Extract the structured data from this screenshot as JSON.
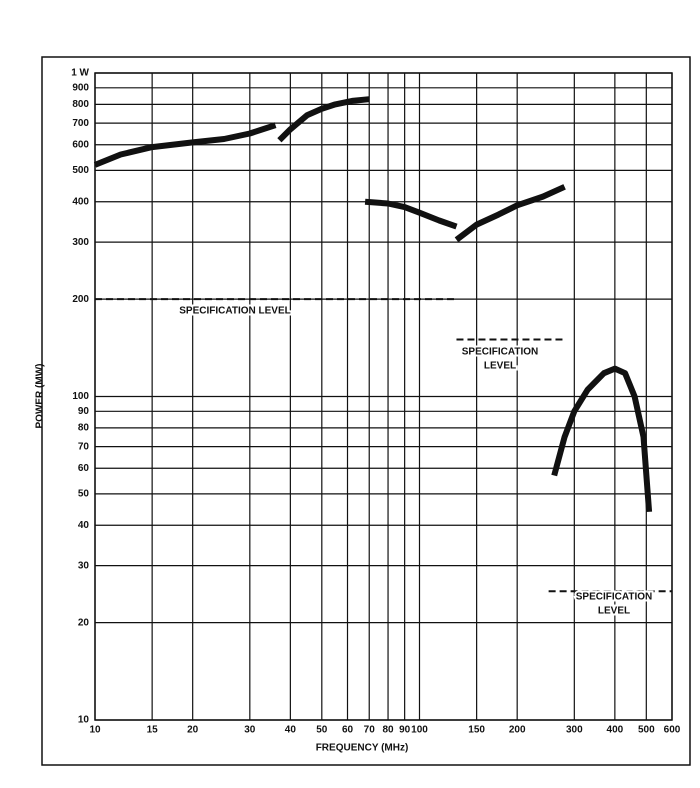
{
  "chart_data": {
    "type": "line",
    "y_label": "POWER (MW)",
    "x_label": "FREQUENCY (MHz)",
    "x_scale": "log",
    "y_scale": "log",
    "grid": true,
    "color": "#111111",
    "xlim": [
      10,
      600
    ],
    "ylim": [
      10,
      1000
    ],
    "xticks": [
      10,
      15,
      20,
      30,
      40,
      50,
      60,
      70,
      80,
      90,
      100,
      150,
      200,
      300,
      400,
      500,
      600
    ],
    "yticks": [
      10,
      20,
      30,
      40,
      50,
      60,
      70,
      80,
      90,
      100,
      200,
      300,
      400,
      500,
      600,
      700,
      800,
      900,
      {
        "value": 1000,
        "label": "1 W"
      }
    ],
    "series": [
      {
        "x": [
          10,
          12,
          15,
          20,
          25,
          30,
          36
        ],
        "values": [
          520,
          560,
          590,
          610,
          625,
          650,
          690
        ]
      },
      {
        "x": [
          37,
          40,
          45,
          50,
          55,
          62,
          70
        ],
        "values": [
          620,
          670,
          740,
          775,
          800,
          820,
          830
        ]
      },
      {
        "x": [
          68,
          80,
          90,
          100,
          115,
          130
        ],
        "values": [
          400,
          395,
          385,
          370,
          350,
          335
        ]
      },
      {
        "x": [
          130,
          150,
          175,
          200,
          240,
          280
        ],
        "values": [
          305,
          340,
          365,
          390,
          415,
          445
        ]
      },
      {
        "x": [
          260,
          280,
          300,
          330,
          370,
          400,
          430,
          460,
          490,
          510
        ],
        "values": [
          57,
          75,
          90,
          105,
          118,
          122,
          118,
          100,
          75,
          44
        ]
      }
    ],
    "annotations": [
      {
        "text": [
          "SPECIFICATION LEVEL"
        ],
        "value": 200,
        "x_range": [
          10,
          130
        ]
      },
      {
        "text": [
          "SPECIFICATION",
          "LEVEL"
        ],
        "value": 150,
        "x_range": [
          130,
          280
        ]
      },
      {
        "text": [
          "SPECIFICATION",
          "LEVEL"
        ],
        "value": 25,
        "x_range": [
          250,
          600
        ]
      }
    ]
  }
}
